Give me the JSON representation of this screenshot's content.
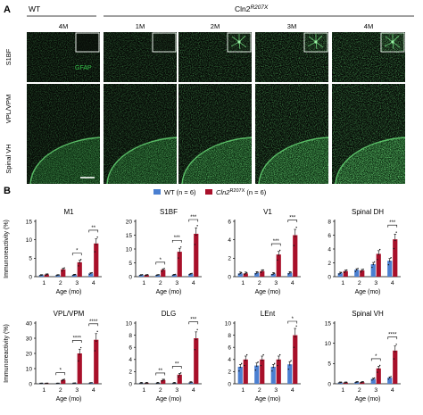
{
  "panel_a": {
    "label": "A",
    "group_wt": "WT",
    "group_cln2": "Cln2",
    "group_cln2_sup": "R207X",
    "column_ages": [
      "4M",
      "1M",
      "2M",
      "3M",
      "4M"
    ],
    "row_labels": [
      "S1BF",
      "VPL/VPM",
      "Spinal VH"
    ],
    "stain_label": "GFAP",
    "stain_color": "#35c24a"
  },
  "panel_b": {
    "label": "B",
    "legend": {
      "wt_label": "WT (n = 6)",
      "cln2_label_main": "Cln2",
      "cln2_label_sup": "R207X",
      "cln2_label_tail": " (n = 6)"
    },
    "colors": {
      "wt": "#4a7fd1",
      "cln2": "#a8102a"
    },
    "y_axis_label": "Immunoreactivity (%)",
    "x_axis_label": "Age (mo)"
  },
  "chart_data": [
    {
      "type": "bar",
      "title": "M1",
      "categories": [
        "1",
        "2",
        "3",
        "4"
      ],
      "ylim": [
        0,
        15
      ],
      "yticks": [
        0,
        5,
        10,
        15
      ],
      "series": [
        {
          "name": "WT",
          "values": [
            0.4,
            0.4,
            0.5,
            0.9
          ]
        },
        {
          "name": "Cln2R207X",
          "values": [
            0.6,
            2.0,
            3.9,
            9.0
          ]
        }
      ],
      "significance": [
        "",
        "",
        "*",
        "**"
      ]
    },
    {
      "type": "bar",
      "title": "S1BF",
      "categories": [
        "1",
        "2",
        "3",
        "4"
      ],
      "ylim": [
        0,
        20
      ],
      "yticks": [
        0,
        5,
        10,
        15,
        20
      ],
      "series": [
        {
          "name": "WT",
          "values": [
            0.6,
            0.6,
            0.7,
            1.0
          ]
        },
        {
          "name": "Cln2R207X",
          "values": [
            0.6,
            2.5,
            9.0,
            15.5
          ]
        }
      ],
      "significance": [
        "",
        "*",
        "***",
        "***"
      ]
    },
    {
      "type": "bar",
      "title": "V1",
      "categories": [
        "1",
        "2",
        "3",
        "4"
      ],
      "ylim": [
        0,
        6
      ],
      "yticks": [
        0,
        2,
        4,
        6
      ],
      "series": [
        {
          "name": "WT",
          "values": [
            0.35,
            0.4,
            0.3,
            0.4
          ]
        },
        {
          "name": "Cln2R207X",
          "values": [
            0.35,
            0.6,
            2.4,
            4.5
          ]
        }
      ],
      "significance": [
        "",
        "",
        "***",
        "***"
      ]
    },
    {
      "type": "bar",
      "title": "Spinal DH",
      "categories": [
        "1",
        "2",
        "3",
        "4"
      ],
      "ylim": [
        0,
        8
      ],
      "yticks": [
        0,
        2,
        4,
        6,
        8
      ],
      "series": [
        {
          "name": "WT",
          "values": [
            0.5,
            1.0,
            1.8,
            2.3
          ]
        },
        {
          "name": "Cln2R207X",
          "values": [
            0.8,
            0.9,
            3.3,
            5.4
          ]
        }
      ],
      "significance": [
        "",
        "",
        "",
        "***"
      ]
    },
    {
      "type": "bar",
      "title": "VPL/VPM",
      "categories": [
        "1",
        "2",
        "3",
        "4"
      ],
      "ylim": [
        0,
        40
      ],
      "yticks": [
        0,
        10,
        20,
        30,
        40
      ],
      "series": [
        {
          "name": "WT",
          "values": [
            0.3,
            0.3,
            0.4,
            0.6
          ]
        },
        {
          "name": "Cln2R207X",
          "values": [
            0.3,
            2.5,
            20.0,
            29.0
          ]
        }
      ],
      "significance": [
        "",
        "*",
        "****",
        "****"
      ]
    },
    {
      "type": "bar",
      "title": "DLG",
      "categories": [
        "1",
        "2",
        "3",
        "4"
      ],
      "ylim": [
        0,
        10
      ],
      "yticks": [
        0,
        2,
        4,
        6,
        8,
        10
      ],
      "series": [
        {
          "name": "WT",
          "values": [
            0.1,
            0.1,
            0.1,
            0.2
          ]
        },
        {
          "name": "Cln2R207X",
          "values": [
            0.1,
            0.6,
            1.5,
            7.5
          ]
        }
      ],
      "significance": [
        "",
        "**",
        "**",
        "***"
      ]
    },
    {
      "type": "bar",
      "title": "LEnt",
      "categories": [
        "1",
        "2",
        "3",
        "4"
      ],
      "ylim": [
        0,
        10
      ],
      "yticks": [
        0,
        2,
        4,
        6,
        8,
        10
      ],
      "series": [
        {
          "name": "WT",
          "values": [
            2.8,
            3.0,
            2.8,
            3.2
          ]
        },
        {
          "name": "Cln2R207X",
          "values": [
            4.0,
            4.0,
            4.0,
            8.0
          ]
        }
      ],
      "significance": [
        "",
        "",
        "",
        "*"
      ]
    },
    {
      "type": "bar",
      "title": "Spinal VH",
      "categories": [
        "1",
        "2",
        "3",
        "4"
      ],
      "ylim": [
        0,
        15
      ],
      "yticks": [
        0,
        5,
        10,
        15
      ],
      "series": [
        {
          "name": "WT",
          "values": [
            0.3,
            0.4,
            1.2,
            1.5
          ]
        },
        {
          "name": "Cln2R207X",
          "values": [
            0.3,
            0.4,
            3.8,
            8.2
          ]
        }
      ],
      "significance": [
        "",
        "",
        "*",
        "****"
      ]
    }
  ]
}
